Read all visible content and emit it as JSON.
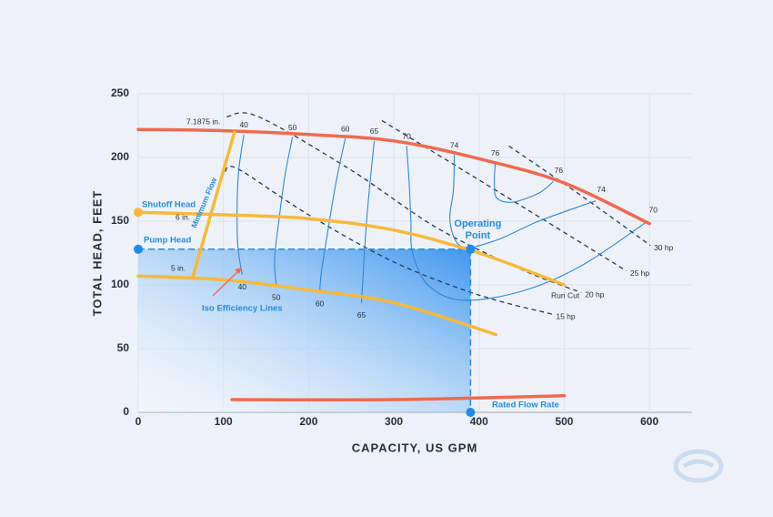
{
  "chart_data": {
    "type": "line",
    "xlabel": "CAPACITY, US GPM",
    "ylabel": "TOTAL HEAD, FEET",
    "xlim": [
      0,
      650
    ],
    "ylim": [
      0,
      250
    ],
    "xticks": [
      0,
      100,
      200,
      300,
      400,
      500,
      600
    ],
    "yticks": [
      0,
      50,
      100,
      150,
      200,
      250
    ],
    "grid": true,
    "series": [
      {
        "name": "7.1875 in.",
        "color": "#f0694e",
        "x": [
          0,
          100,
          200,
          300,
          400,
          500,
          600
        ],
        "values": [
          222,
          221,
          218,
          213,
          199,
          180,
          148
        ]
      },
      {
        "name": "6 in.",
        "color": "#f6b93b",
        "x": [
          0,
          100,
          200,
          300,
          400,
          500
        ],
        "values": [
          157,
          155,
          152,
          143,
          125,
          100
        ]
      },
      {
        "name": "5 in.",
        "color": "#f6b93b",
        "x": [
          0,
          100,
          200,
          300,
          420
        ],
        "values": [
          107,
          104,
          96,
          86,
          61
        ]
      },
      {
        "name": "Minimum Flow",
        "color": "#f6b93b",
        "x": [
          113,
          64
        ],
        "values": [
          220,
          106
        ]
      },
      {
        "name": "Rated Flow Rate",
        "color": "#f0694e",
        "x": [
          110,
          300,
          500
        ],
        "values": [
          10,
          10,
          13
        ]
      }
    ],
    "run_cut_label": "Run Cut",
    "hp_lines": [
      {
        "name": "15 hp",
        "x": [
          102,
          117,
          200,
          300,
          400,
          486
        ],
        "values": [
          189,
          191,
          155,
          118,
          92,
          77
        ]
      },
      {
        "name": "20 hp",
        "x": [
          104,
          141,
          250,
          350,
          450,
          520
        ],
        "values": [
          232,
          232,
          190,
          145,
          112,
          94
        ]
      },
      {
        "name": "25 hp",
        "x": [
          286,
          430,
          573
        ],
        "values": [
          229,
          170,
          111
        ]
      },
      {
        "name": "30 hp",
        "x": [
          435,
          520,
          601
        ],
        "values": [
          209,
          170,
          131
        ]
      }
    ],
    "efficiency_lines": [
      {
        "label": 40,
        "x": [
          124,
          118,
          116,
          117,
          122
        ],
        "values": [
          218,
          190,
          160,
          130,
          108
        ]
      },
      {
        "label": 50,
        "x": [
          181,
          172,
          165,
          160,
          162
        ],
        "values": [
          216,
          185,
          150,
          120,
          100
        ]
      },
      {
        "label": 60,
        "x": [
          243,
          232,
          222,
          215,
          213
        ],
        "values": [
          215,
          180,
          140,
          110,
          95
        ]
      },
      {
        "label": 65,
        "x": [
          277,
          272,
          268,
          265,
          262
        ],
        "values": [
          213,
          180,
          150,
          120,
          86
        ]
      },
      {
        "label": 70,
        "x": [
          315,
          318,
          320,
          322,
          340,
          380,
          450,
          520,
          598
        ],
        "values": [
          209,
          180,
          150,
          125,
          100,
          88,
          95,
          115,
          150
        ]
      },
      {
        "label": 74,
        "x": [
          371,
          370,
          366,
          380,
          420,
          470,
          537
        ],
        "values": [
          202,
          175,
          149,
          130,
          135,
          150,
          166
        ]
      },
      {
        "label": 76,
        "x": [
          419,
          418,
          421,
          440,
          470,
          487
        ],
        "values": [
          196,
          180,
          168,
          165,
          172,
          181
        ]
      }
    ],
    "efficiency_label": "Iso Efficiency Lines",
    "operating_point": {
      "label": "Operating Point",
      "x": 390,
      "y": 128
    },
    "shutoff_head": {
      "label": "Shutoff Head",
      "value": 157
    },
    "pump_head": {
      "label": "Pump Head",
      "value": 128
    }
  }
}
